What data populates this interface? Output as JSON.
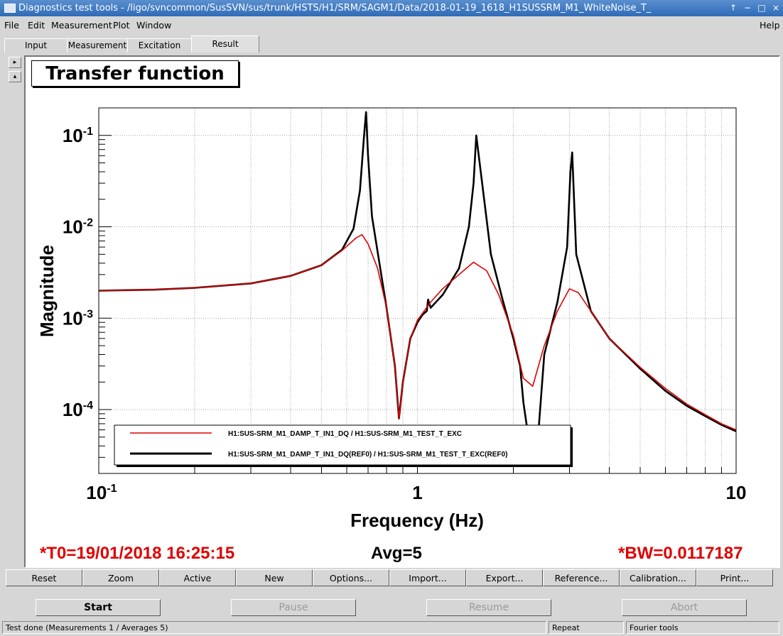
{
  "window": {
    "title": "Diagnostics test tools - /ligo/svncommon/SusSVN/sus/trunk/HSTS/H1/SRM/SAGM1/Data/2018-01-19_1618_H1SUSSRM_M1_WhiteNoise_T_",
    "btn_up": "↑",
    "btn_min": "−",
    "btn_max": "□",
    "btn_close": "×"
  },
  "menu": {
    "file": "File",
    "edit": "Edit",
    "measurement": "Measurement",
    "plot": "Plot",
    "window": "Window",
    "help": "Help"
  },
  "tabs": {
    "input": "Input",
    "measurement": "Measurement",
    "excitation": "Excitation",
    "result": "Result"
  },
  "side": {
    "right": "▸",
    "up": "▴"
  },
  "plot": {
    "title": "Transfer function",
    "t0": "*T0=19/01/2018 16:25:15",
    "avg": "Avg=5",
    "bw": "*BW=0.0117187"
  },
  "chart_data": {
    "type": "line",
    "xlabel": "Frequency (Hz)",
    "ylabel": "Magnitude",
    "xscale": "log",
    "yscale": "log",
    "xlim": [
      0.1,
      10
    ],
    "ylim": [
      2e-05,
      0.2
    ],
    "grid": true,
    "legend_placement": "bottom-left",
    "x_tick_labels": [
      {
        "value": 0.1,
        "base": "10",
        "exp": "-1"
      },
      {
        "value": 1,
        "base": "1",
        "exp": ""
      },
      {
        "value": 10,
        "base": "10",
        "exp": ""
      }
    ],
    "y_tick_labels": [
      {
        "value": 0.1,
        "base": "10",
        "exp": "-1"
      },
      {
        "value": 0.01,
        "base": "10",
        "exp": "-2"
      },
      {
        "value": 0.001,
        "base": "10",
        "exp": "-3"
      },
      {
        "value": 0.0001,
        "base": "10",
        "exp": "-4"
      }
    ],
    "series": [
      {
        "name": "H1:SUS-SRM_M1_DAMP_T_IN1_DQ / H1:SUS-SRM_M1_TEST_T_EXC",
        "color": "#e00000",
        "x": [
          0.1,
          0.15,
          0.2,
          0.3,
          0.4,
          0.5,
          0.58,
          0.64,
          0.67,
          0.7,
          0.75,
          0.8,
          0.85,
          0.875,
          0.9,
          0.95,
          1.0,
          1.1,
          1.2,
          1.35,
          1.5,
          1.65,
          1.8,
          2.0,
          2.15,
          2.3,
          2.5,
          2.75,
          3.0,
          3.2,
          3.5,
          4.0,
          5.0,
          6.0,
          7.0,
          8.0,
          9.0,
          10.0
        ],
        "y": [
          0.002,
          0.00205,
          0.00215,
          0.0024,
          0.0029,
          0.0038,
          0.0055,
          0.0075,
          0.0082,
          0.0065,
          0.0035,
          0.0013,
          0.0003,
          8e-05,
          0.0002,
          0.0006,
          0.00095,
          0.0015,
          0.0021,
          0.003,
          0.0041,
          0.0033,
          0.0018,
          0.00065,
          0.00022,
          0.00018,
          0.0005,
          0.0012,
          0.0021,
          0.0019,
          0.0012,
          0.0006,
          0.00029,
          0.00017,
          0.000115,
          8.8e-05,
          7e-05,
          6e-05
        ]
      },
      {
        "name": "H1:SUS-SRM_M1_DAMP_T_IN1_DQ(REF0) / H1:SUS-SRM_M1_TEST_T_EXC(REF0)",
        "color": "#000000",
        "x": [
          0.1,
          0.15,
          0.2,
          0.3,
          0.4,
          0.5,
          0.58,
          0.63,
          0.66,
          0.68,
          0.69,
          0.7,
          0.72,
          0.76,
          0.8,
          0.85,
          0.875,
          0.9,
          0.95,
          1.0,
          1.04,
          1.07,
          1.08,
          1.1,
          1.2,
          1.35,
          1.45,
          1.5,
          1.53,
          1.58,
          1.7,
          1.85,
          2.0,
          2.1,
          2.15,
          2.25,
          2.3,
          2.4,
          2.5,
          2.75,
          2.95,
          3.02,
          3.06,
          3.15,
          3.5,
          4.0,
          5.0,
          6.0,
          7.0,
          8.0,
          9.0,
          10.0
        ],
        "y": [
          0.002,
          0.00205,
          0.00215,
          0.0024,
          0.0029,
          0.0038,
          0.0056,
          0.0095,
          0.025,
          0.1,
          0.18,
          0.06,
          0.013,
          0.004,
          0.0013,
          0.0003,
          8e-05,
          0.0002,
          0.0006,
          0.0009,
          0.0011,
          0.0012,
          0.0016,
          0.0013,
          0.0018,
          0.0035,
          0.01,
          0.03,
          0.1,
          0.04,
          0.005,
          0.0016,
          0.0006,
          0.0003,
          0.00012,
          4e-05,
          3e-05,
          6e-05,
          0.0004,
          0.0015,
          0.006,
          0.04,
          0.065,
          0.005,
          0.0012,
          0.0006,
          0.00028,
          0.00016,
          0.00011,
          8.5e-05,
          6.8e-05,
          5.8e-05
        ]
      }
    ]
  },
  "buttons": {
    "reset": "Reset",
    "zoom": "Zoom",
    "active": "Active",
    "new": "New",
    "options": "Options...",
    "import": "Import...",
    "export": "Export...",
    "reference": "Reference...",
    "calibration": "Calibration...",
    "print": "Print..."
  },
  "run_buttons": {
    "start": "Start",
    "pause": "Pause",
    "resume": "Resume",
    "abort": "Abort"
  },
  "status": {
    "main": "Test done (Measurements 1 / Averages 5)",
    "repeat": "Repeat",
    "fourier": "Fourier tools"
  }
}
